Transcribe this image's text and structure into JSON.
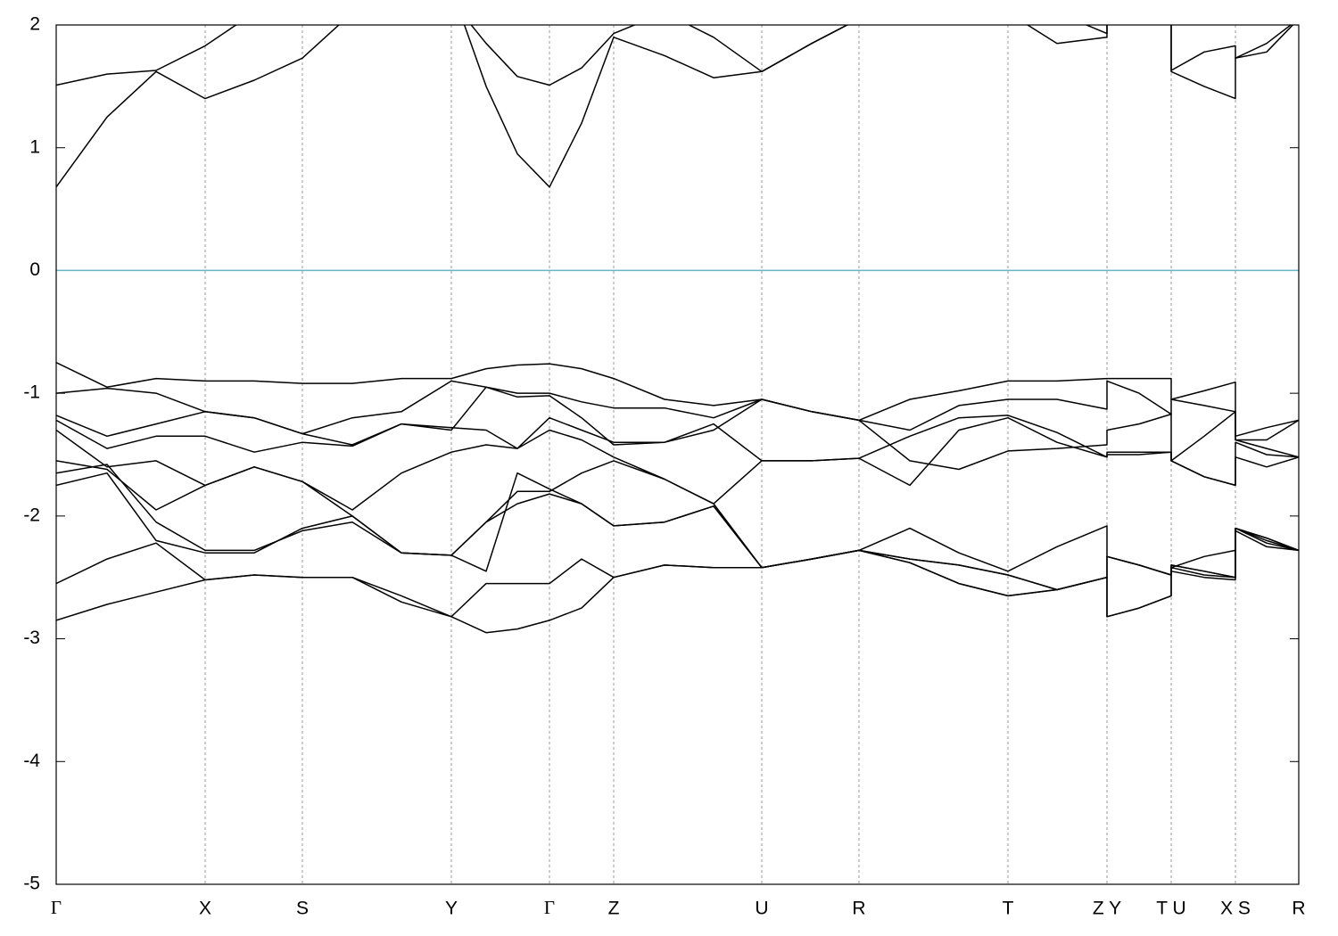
{
  "chart_data": {
    "type": "line",
    "x": [
      0,
      0.57,
      1.12,
      1.67,
      2.22,
      2.76,
      3.32,
      3.87,
      4.43,
      4.82,
      5.17,
      5.53,
      5.89,
      6.25,
      6.82,
      7.37,
      7.91,
      8.47,
      9.0,
      9.57,
      10.12,
      10.67,
      11.22,
      11.78,
      11.78,
      12.14,
      12.5,
      12.5,
      12.87,
      13.22,
      13.22,
      13.57,
      13.93
    ],
    "xlim": [
      0,
      13.93
    ],
    "xticks": [
      {
        "value": 0,
        "label": "Γ"
      },
      {
        "value": 1.67,
        "label": "X"
      },
      {
        "value": 2.76,
        "label": "S"
      },
      {
        "value": 4.43,
        "label": "Y"
      },
      {
        "value": 5.53,
        "label": "Γ"
      },
      {
        "value": 6.25,
        "label": "Z"
      },
      {
        "value": 7.91,
        "label": "U"
      },
      {
        "value": 9.0,
        "label": "R"
      },
      {
        "value": 10.67,
        "label": "T"
      },
      {
        "value": 11.78,
        "label": "Z Y"
      },
      {
        "value": 12.5,
        "label": "T U"
      },
      {
        "value": 13.22,
        "label": "X S"
      },
      {
        "value": 13.93,
        "label": "R"
      }
    ],
    "ylim": [
      -5,
      2
    ],
    "yticks": [
      2,
      1,
      0,
      -1,
      -2,
      -3,
      -4,
      -5
    ],
    "grid": true,
    "fermi_level": 0,
    "fermi_color": "#6ab4c8",
    "series": [
      {
        "color": "#000000",
        "values": [
          0.68,
          1.25,
          1.62,
          1.4,
          1.55,
          1.73,
          2.1,
          2.3,
          2.3,
          1.5,
          0.95,
          0.68,
          1.2,
          1.9,
          1.75,
          1.57,
          1.62,
          1.85,
          2.05,
          2.2,
          2.2,
          2.1,
          1.85,
          1.9,
          2.2,
          2.2,
          2.2,
          1.62,
          1.5,
          1.4,
          1.73,
          1.78,
          2.05
        ]
      },
      {
        "color": "#000000",
        "values": [
          1.51,
          1.6,
          1.63,
          1.83,
          2.1,
          2.2,
          2.3,
          2.3,
          2.2,
          1.85,
          1.58,
          1.51,
          1.65,
          1.93,
          2.1,
          1.9,
          1.62,
          1.85,
          2.05,
          2.3,
          2.3,
          2.2,
          2.1,
          1.93,
          2.3,
          2.3,
          2.3,
          1.63,
          1.78,
          1.83,
          1.73,
          1.85,
          2.05
        ]
      },
      {
        "color": "#000000",
        "values": [
          -0.75,
          -0.95,
          -0.88,
          -0.9,
          -0.9,
          -0.92,
          -0.92,
          -0.88,
          -0.88,
          -0.8,
          -0.77,
          -0.76,
          -0.8,
          -0.88,
          -1.05,
          -1.1,
          -1.05,
          -1.15,
          -1.22,
          -1.05,
          -0.98,
          -0.9,
          -0.9,
          -0.88,
          -0.88,
          -0.88,
          -0.88,
          -1.05,
          -0.98,
          -0.91,
          -1.35,
          -1.28,
          -1.22
        ]
      },
      {
        "color": "#000000",
        "values": [
          -1.0,
          -0.96,
          -1.0,
          -1.15,
          -1.2,
          -1.33,
          -1.2,
          -1.15,
          -0.9,
          -0.95,
          -1.0,
          -1.0,
          -1.07,
          -1.12,
          -1.12,
          -1.2,
          -1.05,
          -1.15,
          -1.22,
          -1.3,
          -1.1,
          -1.05,
          -1.05,
          -1.13,
          -0.9,
          -1.0,
          -1.17,
          -1.05,
          -1.1,
          -1.15,
          -1.38,
          -1.38,
          -1.22
        ]
      },
      {
        "color": "#000000",
        "values": [
          -1.18,
          -1.35,
          -1.25,
          -1.15,
          -1.2,
          -1.33,
          -1.42,
          -1.25,
          -1.3,
          -0.95,
          -1.03,
          -1.02,
          -1.2,
          -1.42,
          -1.4,
          -1.3,
          -1.05,
          -1.15,
          -1.22,
          -1.55,
          -1.62,
          -1.47,
          -1.45,
          -1.42,
          -1.3,
          -1.25,
          -1.17,
          -1.55,
          -1.35,
          -1.15,
          -1.38,
          -1.45,
          -1.52
        ]
      },
      {
        "color": "#000000",
        "values": [
          -1.22,
          -1.45,
          -1.35,
          -1.35,
          -1.48,
          -1.4,
          -1.43,
          -1.25,
          -1.28,
          -1.3,
          -1.45,
          -1.2,
          -1.3,
          -1.4,
          -1.4,
          -1.25,
          -1.55,
          -1.55,
          -1.53,
          -1.75,
          -1.3,
          -1.2,
          -1.4,
          -1.52,
          -1.48,
          -1.48,
          -1.48,
          -1.55,
          -1.68,
          -1.75,
          -1.4,
          -1.5,
          -1.52
        ]
      },
      {
        "color": "#000000",
        "values": [
          -1.3,
          -1.6,
          -1.55,
          -1.75,
          -1.6,
          -1.72,
          -1.95,
          -1.65,
          -1.48,
          -1.42,
          -1.45,
          -1.3,
          -1.38,
          -1.52,
          -1.7,
          -1.9,
          -1.55,
          -1.55,
          -1.53,
          -1.35,
          -1.2,
          -1.18,
          -1.32,
          -1.52,
          -1.5,
          -1.5,
          -1.48,
          -1.55,
          -1.68,
          -1.75,
          -1.52,
          -1.6,
          -1.52
        ]
      },
      {
        "color": "#000000",
        "values": [
          -1.55,
          -1.62,
          -1.95,
          -1.75,
          -1.6,
          -1.72,
          -2.0,
          -2.3,
          -2.32,
          -2.45,
          -1.65,
          -1.78,
          -1.9,
          -2.08,
          -2.05,
          -1.92,
          -2.42,
          -2.35,
          -2.28,
          -2.1,
          -2.3,
          -2.45,
          -2.25,
          -2.08,
          -2.33,
          -2.4,
          -2.48,
          -2.42,
          -2.33,
          -2.28,
          -2.1,
          -2.18,
          -2.28
        ]
      },
      {
        "color": "#000000",
        "values": [
          -1.65,
          -1.58,
          -2.05,
          -2.28,
          -2.28,
          -2.12,
          -2.05,
          -2.3,
          -2.32,
          -2.05,
          -1.8,
          -1.8,
          -1.65,
          -1.55,
          -1.7,
          -1.9,
          -2.42,
          -2.35,
          -2.28,
          -2.35,
          -2.4,
          -2.48,
          -2.6,
          -2.5,
          -2.33,
          -2.4,
          -2.48,
          -2.4,
          -2.45,
          -2.5,
          -2.1,
          -2.18,
          -2.28
        ]
      },
      {
        "color": "#000000",
        "values": [
          -1.75,
          -1.65,
          -2.2,
          -2.3,
          -2.3,
          -2.1,
          -2.0,
          -2.3,
          -2.32,
          -2.05,
          -1.9,
          -1.82,
          -1.9,
          -2.08,
          -2.05,
          -1.92,
          -2.42,
          -2.35,
          -2.28,
          -2.35,
          -2.4,
          -2.48,
          -2.6,
          -2.5,
          -2.33,
          -2.4,
          -2.48,
          -2.42,
          -2.48,
          -2.5,
          -2.1,
          -2.22,
          -2.28
        ]
      },
      {
        "color": "#000000",
        "values": [
          -2.55,
          -2.35,
          -2.22,
          -2.52,
          -2.48,
          -2.5,
          -2.5,
          -2.65,
          -2.82,
          -2.55,
          -2.55,
          -2.55,
          -2.35,
          -2.5,
          -2.4,
          -2.42,
          -2.42,
          -2.35,
          -2.28,
          -2.38,
          -2.55,
          -2.65,
          -2.6,
          -2.5,
          -2.82,
          -2.75,
          -2.65,
          -2.4,
          -2.45,
          -2.5,
          -2.1,
          -2.2,
          -2.28
        ]
      },
      {
        "color": "#000000",
        "values": [
          -2.85,
          -2.72,
          -2.62,
          -2.52,
          -2.48,
          -2.5,
          -2.5,
          -2.7,
          -2.82,
          -2.95,
          -2.92,
          -2.85,
          -2.75,
          -2.5,
          -2.4,
          -2.42,
          -2.42,
          -2.35,
          -2.28,
          -2.38,
          -2.55,
          -2.65,
          -2.6,
          -2.5,
          -2.82,
          -2.75,
          -2.65,
          -2.45,
          -2.5,
          -2.52,
          -2.12,
          -2.25,
          -2.28
        ]
      }
    ]
  }
}
